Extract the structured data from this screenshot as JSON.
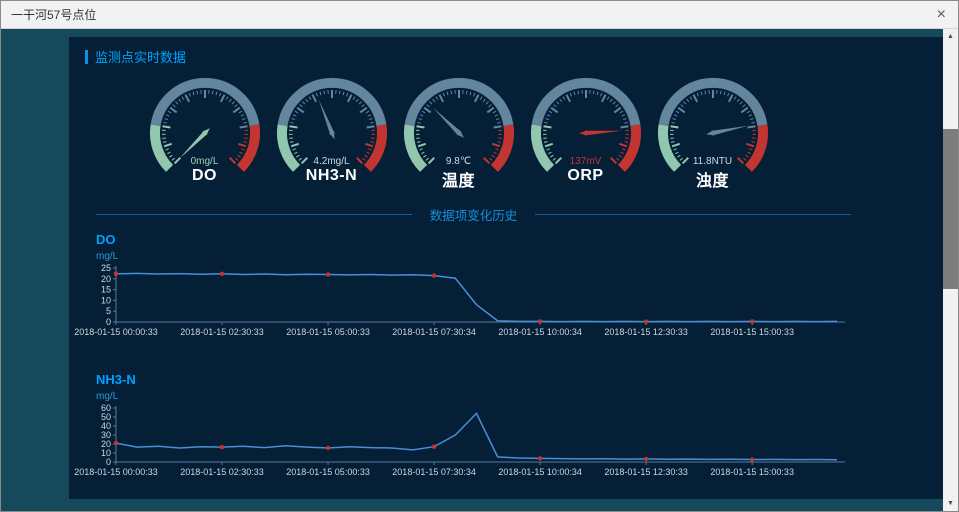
{
  "window": {
    "title": "一干河57号点位"
  },
  "icons": {
    "close": "×",
    "scroll_up": "▲",
    "scroll_down": "▼"
  },
  "sections": {
    "realtime": "监测点实时数据",
    "history": "数据项变化历史"
  },
  "gauges": [
    {
      "label": "DO",
      "value_text": "0mg/L",
      "fraction": 0.0,
      "value_color": "#9fd3b6"
    },
    {
      "label": "NH3-N",
      "value_text": "4.2mg/L",
      "fraction": 0.42,
      "value_color": "#cdd9e4"
    },
    {
      "label": "温度",
      "value_text": "9.8℃",
      "fraction": 0.33,
      "value_color": "#cdd9e4"
    },
    {
      "label": "ORP",
      "value_text": "137mV",
      "fraction": 0.82,
      "value_color": "#c23531"
    },
    {
      "label": "浊度",
      "value_text": "11.8NTU",
      "fraction": 0.79,
      "value_color": "#cdd9e4"
    }
  ],
  "chart_data": [
    {
      "type": "line",
      "title": "DO",
      "ylabel": "mg/L",
      "ylim": [
        0,
        25
      ],
      "yticks": [
        0,
        5,
        10,
        15,
        20,
        25
      ],
      "x_tick_labels": [
        "2018-01-15 00:00:33",
        "2018-01-15 02:30:33",
        "2018-01-15 05:00:33",
        "2018-01-15 07:30:34",
        "2018-01-15 10:00:34",
        "2018-01-15 12:30:33",
        "2018-01-15 15:00:33"
      ],
      "x_tick_indices": [
        0,
        5,
        10,
        15,
        20,
        25,
        30
      ],
      "values": [
        22.3,
        22.5,
        22.2,
        22.4,
        22.1,
        22.3,
        22.0,
        22.2,
        21.9,
        22.1,
        22.0,
        21.8,
        22.0,
        21.7,
        21.9,
        21.5,
        20.3,
        8,
        0.5,
        0.3,
        0.3,
        0.2,
        0.3,
        0.2,
        0.3,
        0.2,
        0.3,
        0.2,
        0.3,
        0.2,
        0.3,
        0.2,
        0.3,
        0.2,
        0.3
      ],
      "marker_indices": [
        0,
        5,
        10,
        15,
        20,
        25,
        30
      ],
      "line_color": "#4b8ed6",
      "marker_color": "#c23531",
      "legend_position": "none",
      "grid": false
    },
    {
      "type": "line",
      "title": "NH3-N",
      "ylabel": "mg/L",
      "ylim": [
        0,
        60
      ],
      "yticks": [
        0,
        10,
        20,
        30,
        40,
        50,
        60
      ],
      "x_tick_labels": [
        "2018-01-15 00:00:33",
        "2018-01-15 02:30:33",
        "2018-01-15 05:00:33",
        "2018-01-15 07:30:34",
        "2018-01-15 10:00:34",
        "2018-01-15 12:30:33",
        "2018-01-15 15:00:33"
      ],
      "x_tick_indices": [
        0,
        5,
        10,
        15,
        20,
        25,
        30
      ],
      "values": [
        21,
        16.5,
        17.5,
        15.5,
        17,
        16.5,
        17.5,
        16,
        18,
        16.5,
        15.5,
        17,
        16,
        15.5,
        13.5,
        17,
        30,
        54,
        5.5,
        4.5,
        4,
        3.8,
        3.5,
        3.6,
        3.2,
        3.4,
        3,
        3.2,
        2.9,
        3,
        2.8,
        2.9,
        2.7,
        2.8,
        2.6
      ],
      "marker_indices": [
        0,
        5,
        10,
        15,
        20,
        25,
        30
      ],
      "line_color": "#4b8ed6",
      "marker_color": "#c23531",
      "legend_position": "none",
      "grid": false
    }
  ],
  "colors": {
    "accent": "#00a2ff",
    "page_bg": "#17495d",
    "panel_bg": "#041f36",
    "line": "#4b8ed6",
    "marker": "#c23531",
    "gauge_zones": [
      {
        "to": 0.2,
        "color": "#91c7ae"
      },
      {
        "to": 0.8,
        "color": "#63869e"
      },
      {
        "to": 1.0,
        "color": "#c23531"
      }
    ]
  }
}
